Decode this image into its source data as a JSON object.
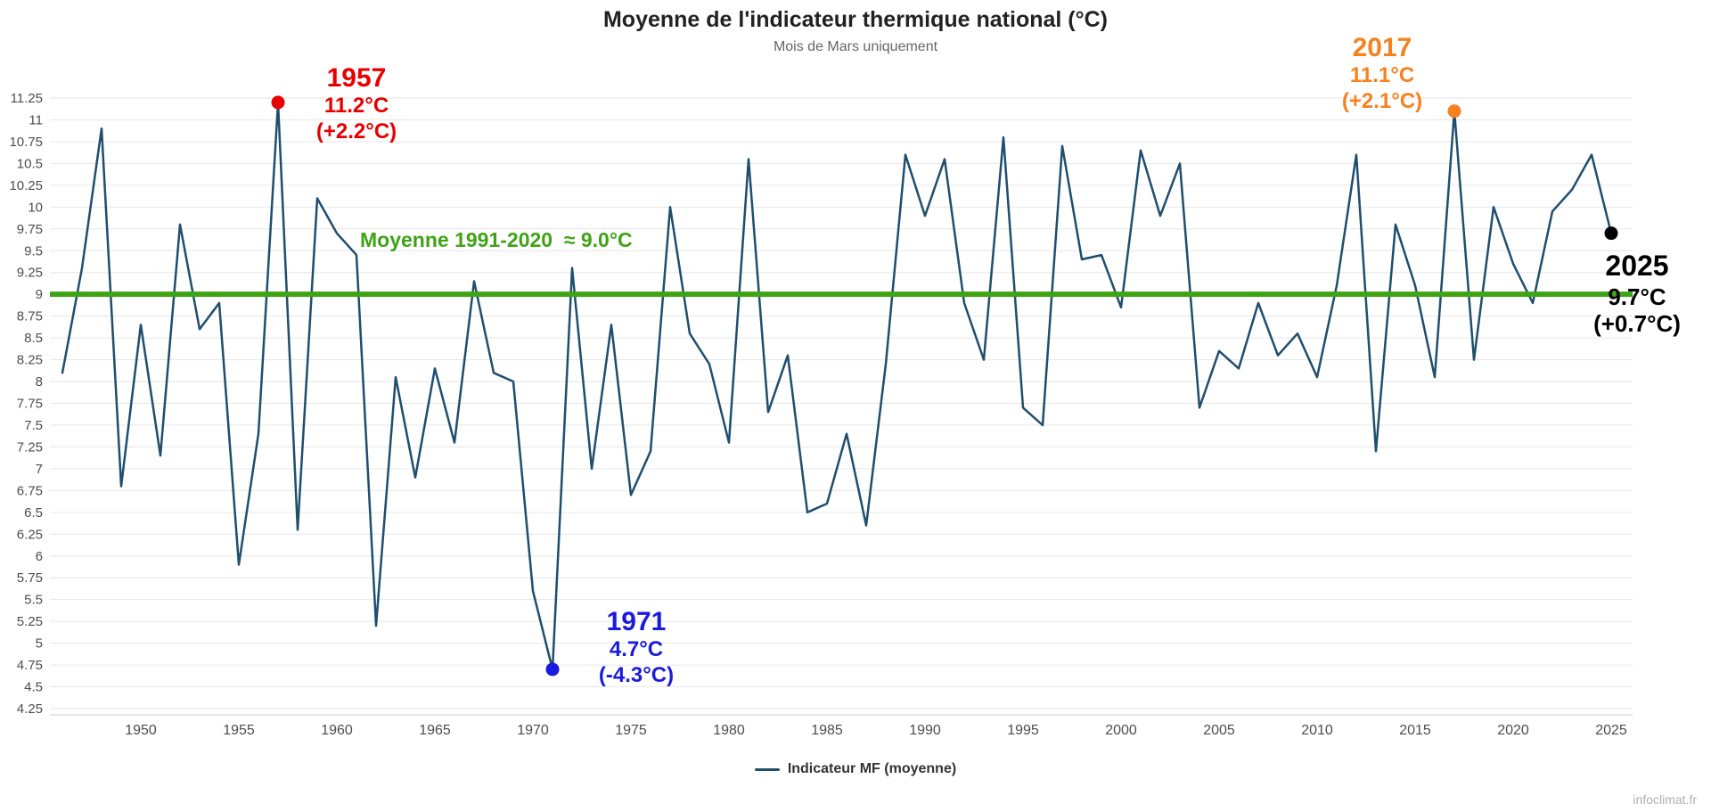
{
  "page": {
    "title": "Moyenne de l'indicateur thermique national (°C)",
    "subtitle": "Mois de Mars uniquement",
    "watermark": "infoclimat.fr"
  },
  "legend": {
    "items": [
      {
        "label": "Indicateur MF (moyenne)",
        "color": "#1f4e6e"
      }
    ]
  },
  "annotations": {
    "a1957": {
      "year": "1957",
      "temp": "11.2°C",
      "anomaly": "(+2.2°C)",
      "color": "#e80000"
    },
    "a1971": {
      "year": "1971",
      "temp": "4.7°C",
      "anomaly": "(-4.3°C)",
      "color": "#1a1ae0"
    },
    "a2017": {
      "year": "2017",
      "temp": "11.1°C",
      "anomaly": "(+2.1°C)",
      "color": "#f5821f"
    },
    "a2025": {
      "year": "2025",
      "temp": "9.7°C",
      "anomaly": "(+0.7°C)",
      "color": "#000000"
    }
  },
  "chart_data": {
    "type": "line",
    "title": "Moyenne de l'indicateur thermique national (°C)",
    "subtitle": "Mois de Mars uniquement",
    "xlabel": "",
    "ylabel": "",
    "ylim": [
      4.25,
      11.25
    ],
    "ytick_step": 0.25,
    "xticks": [
      1950,
      1955,
      1960,
      1965,
      1970,
      1975,
      1980,
      1985,
      1990,
      1995,
      2000,
      2005,
      2010,
      2015,
      2020,
      2025
    ],
    "grid": true,
    "legend_position": "bottom",
    "x": [
      1946,
      1947,
      1948,
      1949,
      1950,
      1951,
      1952,
      1953,
      1954,
      1955,
      1956,
      1957,
      1958,
      1959,
      1960,
      1961,
      1962,
      1963,
      1964,
      1965,
      1966,
      1967,
      1968,
      1969,
      1970,
      1971,
      1972,
      1973,
      1974,
      1975,
      1976,
      1977,
      1978,
      1979,
      1980,
      1981,
      1982,
      1983,
      1984,
      1985,
      1986,
      1987,
      1988,
      1989,
      1990,
      1991,
      1992,
      1993,
      1994,
      1995,
      1996,
      1997,
      1998,
      1999,
      2000,
      2001,
      2002,
      2003,
      2004,
      2005,
      2006,
      2007,
      2008,
      2009,
      2010,
      2011,
      2012,
      2013,
      2014,
      2015,
      2016,
      2017,
      2018,
      2019,
      2020,
      2021,
      2022,
      2023,
      2024,
      2025
    ],
    "series": [
      {
        "name": "Indicateur MF (moyenne)",
        "color": "#1f4e6e",
        "values": [
          8.1,
          9.3,
          10.9,
          6.8,
          8.65,
          7.15,
          9.8,
          8.6,
          8.9,
          5.9,
          7.4,
          11.2,
          6.3,
          10.1,
          9.7,
          9.45,
          5.2,
          8.05,
          6.9,
          8.15,
          7.3,
          9.15,
          8.1,
          8.0,
          5.6,
          4.7,
          9.3,
          7.0,
          8.65,
          6.7,
          7.2,
          10.0,
          8.55,
          8.2,
          7.3,
          10.55,
          7.65,
          8.3,
          6.5,
          6.6,
          7.4,
          6.35,
          8.2,
          10.6,
          9.9,
          10.55,
          8.9,
          8.25,
          10.8,
          7.7,
          7.5,
          10.7,
          9.4,
          9.45,
          8.85,
          10.65,
          9.9,
          10.5,
          7.7,
          8.35,
          8.15,
          8.9,
          8.3,
          8.55,
          8.05,
          9.1,
          10.6,
          7.2,
          9.8,
          9.1,
          8.05,
          11.1,
          8.25,
          10.0,
          9.35,
          8.9,
          9.95,
          10.2,
          10.6,
          9.7
        ]
      }
    ],
    "mean_line": {
      "value": 9.0,
      "label": "Moyenne 1991-2020  ≈ 9.0°C",
      "color": "#3fa315"
    },
    "highlights": [
      {
        "year": 1957,
        "value": 11.2,
        "color": "#e80000"
      },
      {
        "year": 1971,
        "value": 4.7,
        "color": "#1a1ae0"
      },
      {
        "year": 2017,
        "value": 11.1,
        "color": "#f5821f"
      },
      {
        "year": 2025,
        "value": 9.7,
        "color": "#000000"
      }
    ]
  }
}
